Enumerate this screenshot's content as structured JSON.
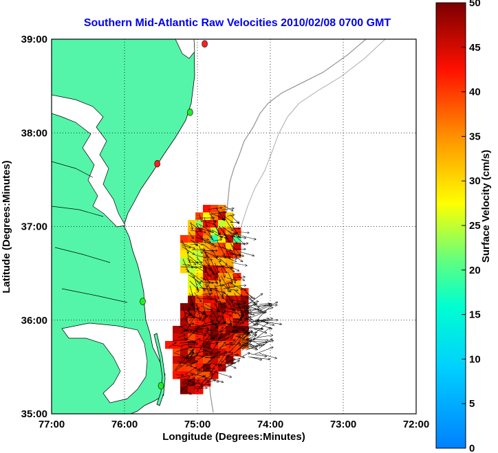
{
  "chart_data": {
    "type": "map",
    "title": "Southern Mid-Atlantic Raw Velocities 2010/02/08 0700 GMT",
    "xlabel": "Longitude (Degrees:Minutes)",
    "ylabel": "Latitude (Degrees:Minutes)",
    "xlim": [
      -77,
      -72
    ],
    "ylim": [
      35,
      39
    ],
    "x_ticks": [
      {
        "value": -77,
        "label": "77:00"
      },
      {
        "value": -76,
        "label": "76:00"
      },
      {
        "value": -75,
        "label": "75:00"
      },
      {
        "value": -74,
        "label": "74:00"
      },
      {
        "value": -73,
        "label": "73:00"
      },
      {
        "value": -72,
        "label": "72:00"
      }
    ],
    "y_ticks": [
      {
        "value": 35,
        "label": "35:00"
      },
      {
        "value": 36,
        "label": "36:00"
      },
      {
        "value": 37,
        "label": "37:00"
      },
      {
        "value": 38,
        "label": "38:00"
      },
      {
        "value": 39,
        "label": "39:00"
      }
    ],
    "grid": true,
    "colorbar": {
      "label": "Surface Velocity (cm/s)",
      "range": [
        0,
        50
      ],
      "ticks": [
        "0",
        "5",
        "10",
        "15",
        "20",
        "25",
        "30",
        "35",
        "40",
        "45",
        "50"
      ],
      "colormap": "jet"
    },
    "land_color": "#54f5a8",
    "velocity_field_region": {
      "lon": [
        -75.6,
        -74.0
      ],
      "lat": [
        35.0,
        37.2
      ]
    },
    "stations": [
      {
        "lon": -74.9,
        "lat": 38.95,
        "color": "#ff2020"
      },
      {
        "lon": -75.1,
        "lat": 38.22,
        "color": "#22ee22"
      },
      {
        "lon": -75.55,
        "lat": 37.67,
        "color": "#ff2020"
      },
      {
        "lon": -75.75,
        "lat": 36.2,
        "color": "#22ee22"
      },
      {
        "lon": -75.5,
        "lat": 35.3,
        "color": "#22ee22"
      }
    ]
  }
}
